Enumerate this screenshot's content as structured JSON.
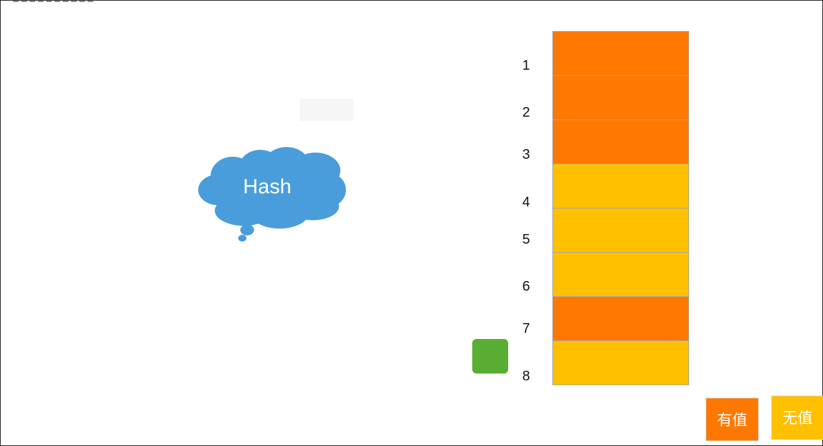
{
  "cloud": {
    "label": "Hash"
  },
  "hash_table": {
    "slots": [
      {
        "index": "1",
        "state": "filled"
      },
      {
        "index": "2",
        "state": "filled"
      },
      {
        "index": "3",
        "state": "filled"
      },
      {
        "index": "4",
        "state": "empty"
      },
      {
        "index": "5",
        "state": "empty"
      },
      {
        "index": "6",
        "state": "empty"
      },
      {
        "index": "7",
        "state": "filled"
      },
      {
        "index": "8",
        "state": "empty"
      }
    ]
  },
  "legend": {
    "filled_label": "有值",
    "empty_label": "无值"
  },
  "colors": {
    "filled": "#ff7800",
    "empty": "#ffc000",
    "cloud": "#4a9ddb",
    "pointer": "#58ae33"
  }
}
